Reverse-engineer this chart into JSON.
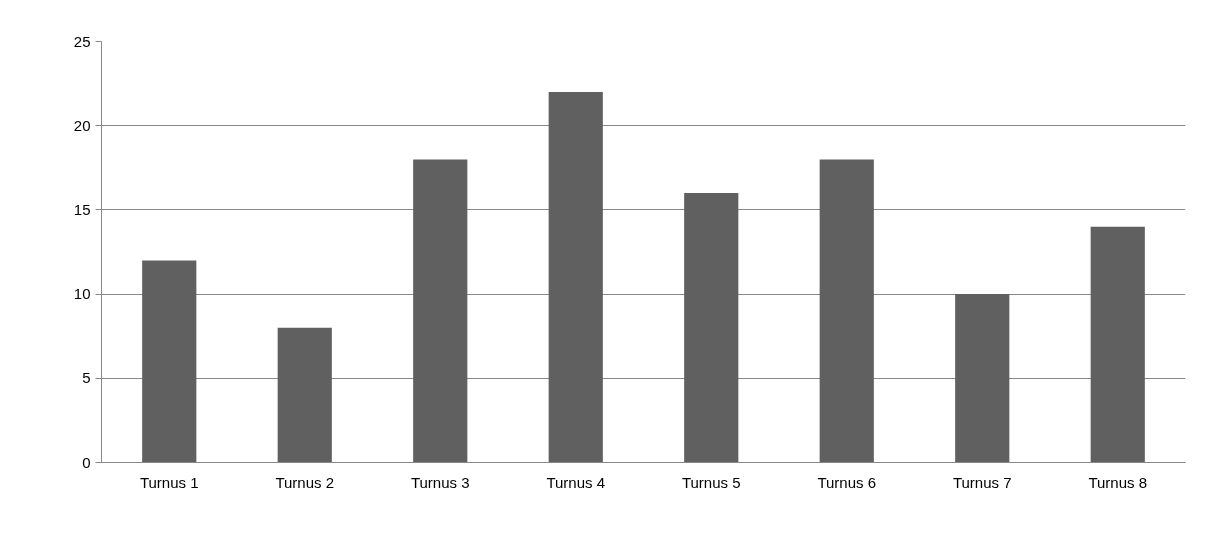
{
  "chart_data": {
    "type": "bar",
    "categories": [
      "Turnus 1",
      "Turnus 2",
      "Turnus 3",
      "Turnus 4",
      "Turnus 5",
      "Turnus 6",
      "Turnus 7",
      "Turnus 8"
    ],
    "values": [
      12,
      8,
      18,
      22,
      16,
      18,
      10,
      14
    ],
    "color": "#606060",
    "ylim": [
      0,
      25
    ],
    "yticks": [
      0,
      5,
      10,
      15,
      20,
      25
    ],
    "grid": "y"
  }
}
